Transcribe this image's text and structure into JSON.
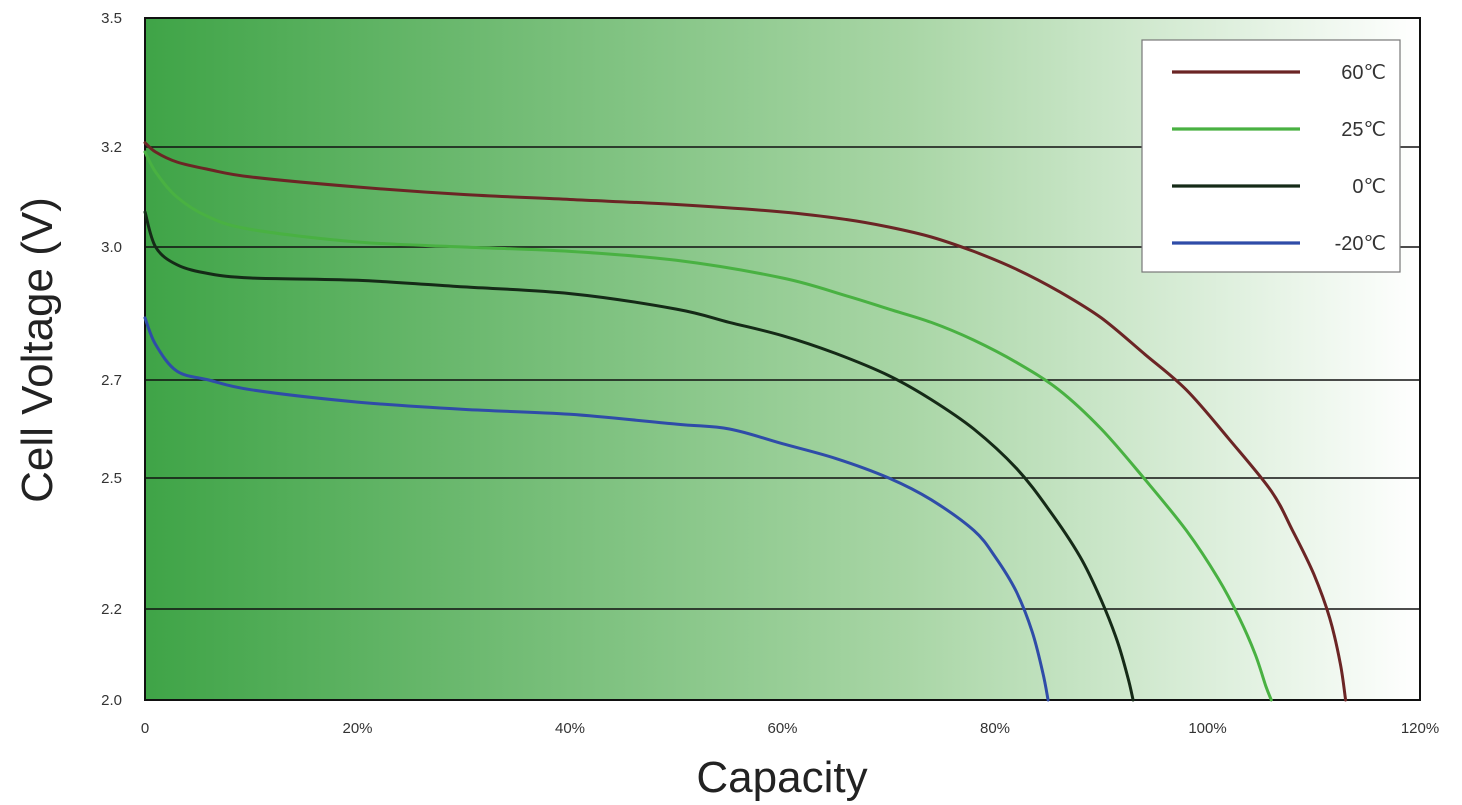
{
  "chart_data": {
    "type": "line",
    "title": "",
    "xlabel": "Capacity",
    "ylabel": "Cell Voltage (V)",
    "xlim": [
      0,
      120
    ],
    "ylim": [
      2.0,
      3.5
    ],
    "y_scale": "piecewise-linear",
    "x_ticks": [
      {
        "value": 0,
        "label": "0"
      },
      {
        "value": 20,
        "label": "20%"
      },
      {
        "value": 40,
        "label": "40%"
      },
      {
        "value": 60,
        "label": "60%"
      },
      {
        "value": 80,
        "label": "80%"
      },
      {
        "value": 100,
        "label": "100%"
      },
      {
        "value": 120,
        "label": "120%"
      }
    ],
    "y_ticks": [
      {
        "value": 2.0,
        "label": "2.0"
      },
      {
        "value": 2.2,
        "label": "2.2"
      },
      {
        "value": 2.5,
        "label": "2.5"
      },
      {
        "value": 2.7,
        "label": "2.7"
      },
      {
        "value": 3.0,
        "label": "3.0"
      },
      {
        "value": 3.2,
        "label": "3.2"
      },
      {
        "value": 3.5,
        "label": "3.5"
      }
    ],
    "grid": "horizontal",
    "legend": "top-right",
    "background": "green gradient",
    "colors": {
      "plot_gradient_start": "#3fa447",
      "plot_gradient_mid": "#a9d6a6",
      "plot_gradient_end": "#ffffff",
      "grid": "#111111",
      "frame": "#111111"
    },
    "series": [
      {
        "name": "60℃",
        "color": "#6b2525",
        "points": [
          [
            0,
            3.21
          ],
          [
            1,
            3.19
          ],
          [
            3,
            3.17
          ],
          [
            6,
            3.155
          ],
          [
            10,
            3.14
          ],
          [
            20,
            3.12
          ],
          [
            30,
            3.105
          ],
          [
            40,
            3.095
          ],
          [
            50,
            3.085
          ],
          [
            60,
            3.07
          ],
          [
            66,
            3.055
          ],
          [
            70,
            3.04
          ],
          [
            74,
            3.02
          ],
          [
            78,
            2.99
          ],
          [
            82,
            2.95
          ],
          [
            86,
            2.9
          ],
          [
            90,
            2.84
          ],
          [
            94,
            2.76
          ],
          [
            98,
            2.68
          ],
          [
            102,
            2.58
          ],
          [
            106,
            2.47
          ],
          [
            108,
            2.38
          ],
          [
            110,
            2.28
          ],
          [
            111.5,
            2.18
          ],
          [
            112.5,
            2.08
          ],
          [
            113,
            2.0
          ]
        ]
      },
      {
        "name": "25℃",
        "color": "#49b142",
        "points": [
          [
            0,
            3.19
          ],
          [
            1,
            3.15
          ],
          [
            3,
            3.1
          ],
          [
            6,
            3.06
          ],
          [
            10,
            3.035
          ],
          [
            20,
            3.01
          ],
          [
            30,
            3.0
          ],
          [
            40,
            2.99
          ],
          [
            50,
            2.97
          ],
          [
            60,
            2.93
          ],
          [
            66,
            2.89
          ],
          [
            70,
            2.86
          ],
          [
            74,
            2.83
          ],
          [
            78,
            2.79
          ],
          [
            82,
            2.74
          ],
          [
            86,
            2.68
          ],
          [
            90,
            2.6
          ],
          [
            94,
            2.5
          ],
          [
            98,
            2.38
          ],
          [
            101,
            2.27
          ],
          [
            103,
            2.18
          ],
          [
            104.5,
            2.1
          ],
          [
            105.5,
            2.03
          ],
          [
            106,
            2.0
          ]
        ]
      },
      {
        "name": "0℃",
        "color": "#152a17",
        "points": [
          [
            0,
            3.07
          ],
          [
            1,
            3.0
          ],
          [
            3,
            2.96
          ],
          [
            6,
            2.94
          ],
          [
            10,
            2.93
          ],
          [
            20,
            2.925
          ],
          [
            30,
            2.91
          ],
          [
            40,
            2.895
          ],
          [
            50,
            2.86
          ],
          [
            55,
            2.83
          ],
          [
            60,
            2.8
          ],
          [
            65,
            2.76
          ],
          [
            70,
            2.71
          ],
          [
            74,
            2.66
          ],
          [
            78,
            2.6
          ],
          [
            82,
            2.52
          ],
          [
            85,
            2.43
          ],
          [
            88,
            2.32
          ],
          [
            90,
            2.22
          ],
          [
            91.5,
            2.13
          ],
          [
            92.5,
            2.05
          ],
          [
            93,
            2.0
          ]
        ]
      },
      {
        "name": "-20℃",
        "color": "#2f4ca8",
        "points": [
          [
            0,
            2.84
          ],
          [
            1,
            2.78
          ],
          [
            3,
            2.72
          ],
          [
            6,
            2.7
          ],
          [
            10,
            2.68
          ],
          [
            20,
            2.655
          ],
          [
            30,
            2.64
          ],
          [
            40,
            2.63
          ],
          [
            50,
            2.61
          ],
          [
            55,
            2.6
          ],
          [
            60,
            2.57
          ],
          [
            65,
            2.54
          ],
          [
            70,
            2.5
          ],
          [
            74,
            2.45
          ],
          [
            78,
            2.38
          ],
          [
            80,
            2.32
          ],
          [
            82,
            2.24
          ],
          [
            83.5,
            2.15
          ],
          [
            84.5,
            2.06
          ],
          [
            85,
            2.0
          ]
        ]
      }
    ]
  }
}
